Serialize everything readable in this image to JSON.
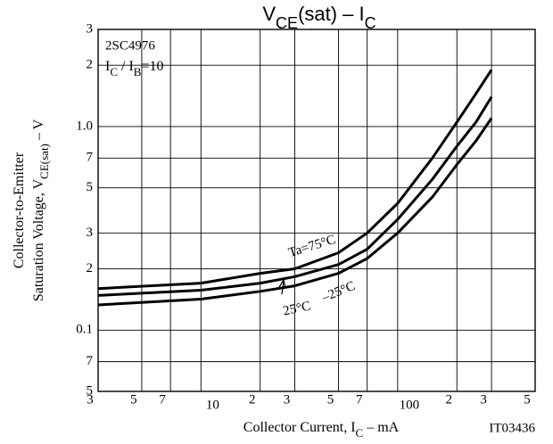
{
  "chart_data": {
    "type": "line",
    "title": [
      "V",
      "CE",
      "(sat) – I",
      "C"
    ],
    "ylabel_lines": [
      [
        "Collector-to-Emitter"
      ],
      [
        "Saturation Voltage, V",
        "CE(sat)",
        "  –  V"
      ]
    ],
    "xlabel": [
      "Collector Current, I",
      "C",
      "  –  mA"
    ],
    "part_number": "2SC4976",
    "condition": [
      "I",
      "C",
      " / I",
      "B",
      "=10"
    ],
    "figure_id": "IT03436",
    "x": [
      3,
      10,
      20,
      30,
      50,
      70,
      100,
      150,
      200,
      250,
      300
    ],
    "series": [
      {
        "name": "Ta=75°C",
        "color": "#000000",
        "values": [
          0.16,
          0.17,
          0.19,
          0.2,
          0.24,
          0.3,
          0.42,
          0.7,
          1.05,
          1.45,
          1.9
        ]
      },
      {
        "name": "25°C",
        "color": "#000000",
        "values": [
          0.148,
          0.157,
          0.17,
          0.183,
          0.21,
          0.25,
          0.35,
          0.55,
          0.8,
          1.05,
          1.4
        ]
      },
      {
        "name": "–25°C",
        "color": "#000000",
        "values": [
          0.133,
          0.142,
          0.155,
          0.165,
          0.19,
          0.225,
          0.3,
          0.45,
          0.65,
          0.85,
          1.1
        ]
      }
    ],
    "xscale": "log",
    "yscale": "log",
    "xlim": [
      3,
      500
    ],
    "ylim": [
      0.05,
      3
    ],
    "xticks": [
      3,
      5,
      7,
      10,
      {
        "value": 20,
        "label": "2"
      },
      {
        "value": 30,
        "label": "3"
      },
      {
        "value": 50,
        "label": "5"
      },
      {
        "value": 70,
        "label": "7"
      },
      100,
      {
        "value": 200,
        "label": "2"
      },
      {
        "value": 300,
        "label": "3"
      },
      {
        "value": 500,
        "label": "5"
      }
    ],
    "yticks": [
      {
        "value": 0.05,
        "label": "5"
      },
      {
        "value": 0.07,
        "label": "7"
      },
      0.1,
      {
        "value": 0.2,
        "label": "2"
      },
      {
        "value": 0.3,
        "label": "3"
      },
      {
        "value": 0.5,
        "label": "5"
      },
      {
        "value": 0.7,
        "label": "7"
      },
      {
        "value": 1,
        "label": "1.0"
      },
      {
        "value": 2,
        "label": "2"
      },
      {
        "value": 3,
        "label": "3"
      }
    ],
    "grid": true
  }
}
